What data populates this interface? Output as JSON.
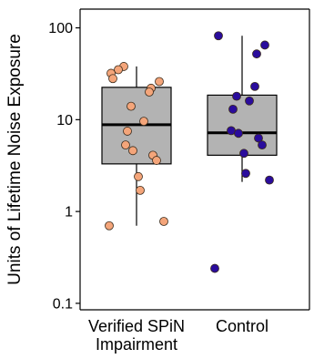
{
  "chart_data": {
    "type": "box",
    "xlabel": "",
    "ylabel": "Units of Lifetime Noise Exposure",
    "y_scale": "log10",
    "ylim": [
      0.085,
      160
    ],
    "y_ticks": [
      0.1,
      1,
      10,
      100
    ],
    "y_tick_labels": [
      "0.1",
      "1",
      "10",
      "100"
    ],
    "grid": false,
    "legend": "none",
    "groups": [
      {
        "category_lines": [
          "Verified SPiN",
          "Impairment"
        ],
        "box": {
          "whisker_low": 0.7,
          "q1": 3.3,
          "median": 8.8,
          "q3": 22.5,
          "whisker_high": 38
        },
        "point_color": "#F4A57A",
        "points": [
          38,
          35,
          32,
          28,
          26,
          22,
          20,
          14,
          9.6,
          7.5,
          5.3,
          4.6,
          4.1,
          3.6,
          2.4,
          1.7,
          0.78,
          0.7
        ]
      },
      {
        "category_lines": [
          "Control"
        ],
        "box": {
          "whisker_low": 2.1,
          "q1": 4.1,
          "median": 7.2,
          "q3": 18.5,
          "whisker_high": 82
        },
        "point_color": "#2A0C9C",
        "points": [
          82,
          65,
          52,
          23,
          18,
          16,
          13,
          7.6,
          7.1,
          6.3,
          5.3,
          4.3,
          2.6,
          2.2,
          0.24
        ]
      }
    ],
    "box_fill": "#B3B3B3"
  }
}
